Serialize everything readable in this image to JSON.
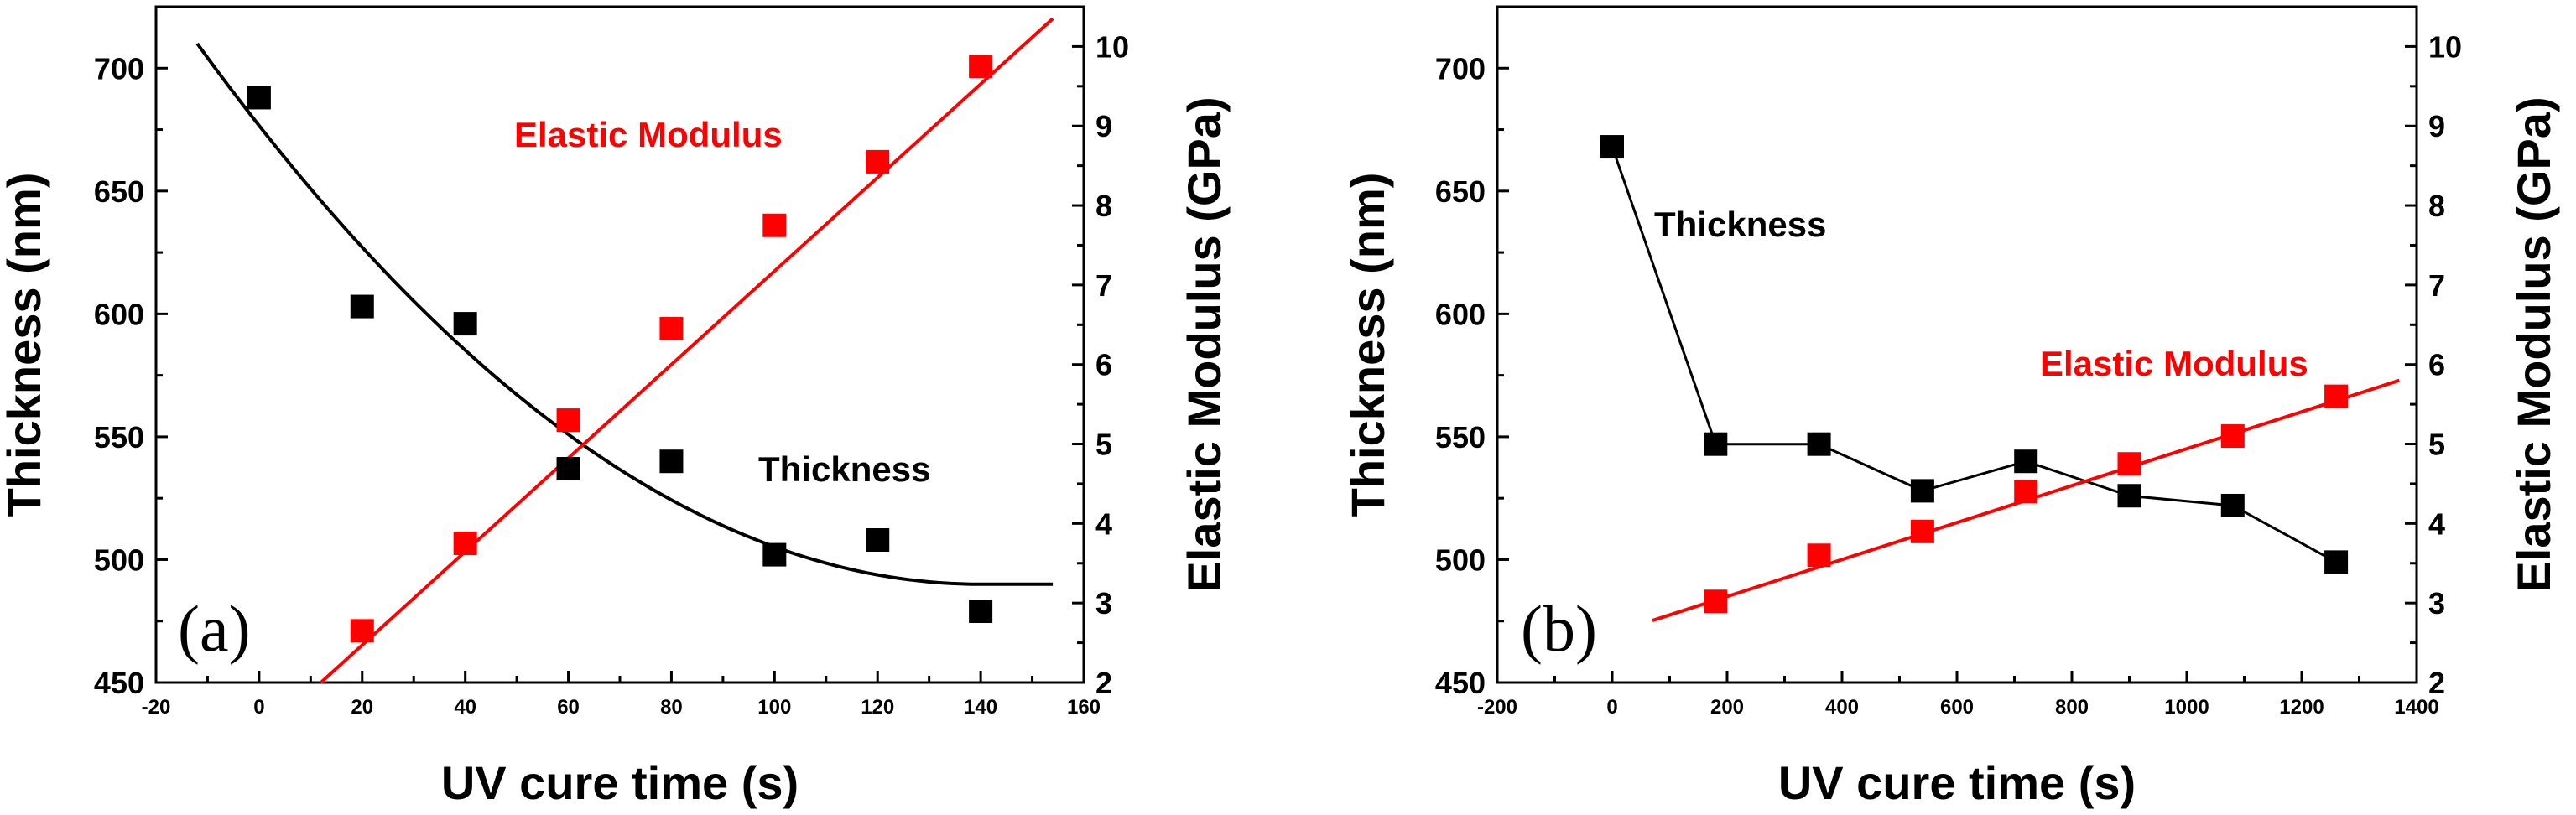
{
  "chart_data": [
    {
      "type": "scatter",
      "panel_label": "(a)",
      "xlabel": "UV cure time (s)",
      "ylabel_left": "Thickness (nm)",
      "ylabel_right": "Elastic Modulus (GPa)",
      "xlim": [
        -20,
        160
      ],
      "ylim_left": [
        450,
        725
      ],
      "ylim_right": [
        2,
        10.5
      ],
      "xticks": [
        "-20",
        "0",
        "20",
        "40",
        "60",
        "80",
        "100",
        "120",
        "140",
        "160"
      ],
      "yticks_left": [
        "450",
        "500",
        "550",
        "600",
        "650",
        "700"
      ],
      "yticks_right": [
        "2",
        "3",
        "4",
        "5",
        "6",
        "7",
        "8",
        "9",
        "10"
      ],
      "series": [
        {
          "name": "Thickness",
          "axis": "left",
          "color": "#000000",
          "x": [
            0,
            20,
            40,
            60,
            80,
            100,
            120,
            140
          ],
          "y": [
            688,
            603,
            596,
            537,
            540,
            502,
            508,
            479
          ],
          "fit": {
            "kind": "quadratic",
            "x": [
              -12,
              140,
              154
            ],
            "y": [
              710,
              490,
              490
            ]
          }
        },
        {
          "name": "Elastic Modulus",
          "axis": "right",
          "color": "#ff0000",
          "x": [
            20,
            40,
            60,
            80,
            100,
            120,
            140
          ],
          "y": [
            2.65,
            3.75,
            5.3,
            6.45,
            7.75,
            8.55,
            9.75
          ],
          "fit": {
            "kind": "linear",
            "x": [
              12,
              154
            ],
            "y": [
              2.0,
              10.35
            ]
          }
        }
      ],
      "annotations": [
        {
          "text": "Elastic Modulus",
          "color": "#ff0000"
        },
        {
          "text": "Thickness",
          "color": "#000000"
        }
      ]
    },
    {
      "type": "scatter",
      "panel_label": "(b)",
      "xlabel": "UV cure time (s)",
      "ylabel_left": "Thickness (nm)",
      "ylabel_right": "Elastic Modulus (GPa)",
      "xlim": [
        -200,
        1400
      ],
      "ylim_left": [
        450,
        725
      ],
      "ylim_right": [
        2,
        10.5
      ],
      "xticks": [
        "-200",
        "0",
        "200",
        "400",
        "600",
        "800",
        "1000",
        "1200",
        "1400"
      ],
      "yticks_left": [
        "450",
        "500",
        "550",
        "600",
        "650",
        "700"
      ],
      "yticks_right": [
        "2",
        "3",
        "4",
        "5",
        "6",
        "7",
        "8",
        "9",
        "10"
      ],
      "series": [
        {
          "name": "Thickness",
          "axis": "left",
          "color": "#000000",
          "connected": true,
          "x": [
            0,
            180,
            360,
            540,
            720,
            900,
            1080,
            1260
          ],
          "y": [
            668,
            547,
            547,
            528,
            540,
            526,
            522,
            499
          ]
        },
        {
          "name": "Elastic Modulus",
          "axis": "right",
          "color": "#ff0000",
          "x": [
            180,
            360,
            540,
            720,
            900,
            1080,
            1260
          ],
          "y": [
            3.02,
            3.6,
            3.9,
            4.4,
            4.75,
            5.1,
            5.6
          ],
          "fit": {
            "kind": "linear",
            "x": [
              70,
              1370
            ],
            "y": [
              2.78,
              5.8
            ]
          }
        }
      ],
      "annotations": [
        {
          "text": "Thickness",
          "color": "#000000"
        },
        {
          "text": "Elastic Modulus",
          "color": "#ff0000"
        }
      ]
    }
  ]
}
